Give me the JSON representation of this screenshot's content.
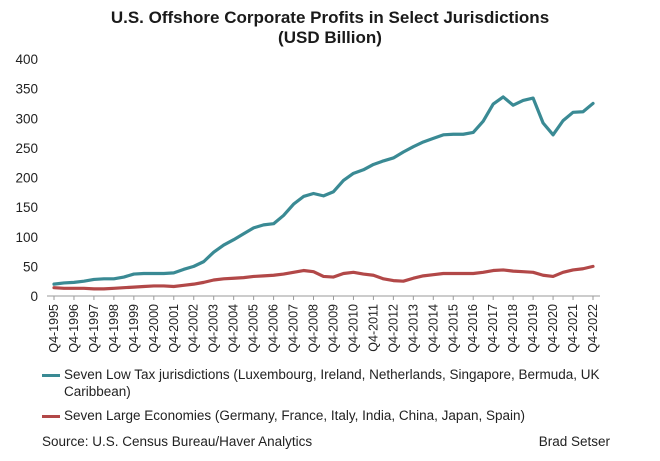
{
  "chart_data": {
    "type": "line",
    "title": "U.S. Offshore Corporate Profits in Select Jurisdictions",
    "subtitle": "(USD Billion)",
    "ylim": [
      0,
      400
    ],
    "yticks": [
      0,
      50,
      100,
      150,
      200,
      250,
      300,
      350,
      400
    ],
    "xtick_labels": [
      "Q4-1995",
      "Q4-1996",
      "Q4-1997",
      "Q4-1998",
      "Q4-1999",
      "Q4-2000",
      "Q4-2001",
      "Q4-2002",
      "Q4-2003",
      "Q4-2004",
      "Q4-2005",
      "Q4-2006",
      "Q4-2007",
      "Q4-2008",
      "Q4-2009",
      "Q4-2010",
      "Q4-2011",
      "Q4-2012",
      "Q4-2013",
      "Q4-2014",
      "Q4-2015",
      "Q4-2016",
      "Q4-2017",
      "Q4-2018",
      "Q4-2019",
      "Q4-2020",
      "Q4-2021",
      "Q4-2022"
    ],
    "x": [
      "Q4-1995",
      "Q2-1996",
      "Q4-1996",
      "Q2-1997",
      "Q4-1997",
      "Q2-1998",
      "Q4-1998",
      "Q2-1999",
      "Q4-1999",
      "Q2-2000",
      "Q4-2000",
      "Q2-2001",
      "Q4-2001",
      "Q2-2002",
      "Q4-2002",
      "Q2-2003",
      "Q4-2003",
      "Q2-2004",
      "Q4-2004",
      "Q2-2005",
      "Q4-2005",
      "Q2-2006",
      "Q4-2006",
      "Q2-2007",
      "Q4-2007",
      "Q2-2008",
      "Q4-2008",
      "Q2-2009",
      "Q4-2009",
      "Q2-2010",
      "Q4-2010",
      "Q2-2011",
      "Q4-2011",
      "Q2-2012",
      "Q4-2012",
      "Q2-2013",
      "Q4-2013",
      "Q2-2014",
      "Q4-2014",
      "Q2-2015",
      "Q4-2015",
      "Q2-2016",
      "Q4-2016",
      "Q2-2017",
      "Q4-2017",
      "Q2-2018",
      "Q4-2018",
      "Q2-2019",
      "Q4-2019",
      "Q2-2020",
      "Q4-2020",
      "Q2-2021",
      "Q4-2021",
      "Q2-2022",
      "Q4-2022"
    ],
    "grid": false,
    "legend_position": "bottom",
    "series": [
      {
        "name": "Seven Low Tax jurisdictions (Luxembourg, Ireland, Netherlands, Singapore, Bermuda, UK Caribbean)",
        "color": "#3a8a94",
        "values": [
          20,
          22,
          23,
          25,
          28,
          29,
          29,
          32,
          37,
          38,
          38,
          38,
          39,
          45,
          50,
          58,
          74,
          86,
          95,
          105,
          115,
          120,
          122,
          136,
          155,
          168,
          173,
          169,
          176,
          195,
          207,
          213,
          222,
          228,
          233,
          243,
          252,
          260,
          266,
          272,
          273,
          273,
          276,
          295,
          324,
          336,
          322,
          330,
          334,
          292,
          272,
          296,
          310,
          311,
          325
        ]
      },
      {
        "name": "Seven Large Economies (Germany, France, Italy, India, China, Japan, Spain)",
        "color": "#b24848",
        "values": [
          14,
          13,
          13,
          13,
          12,
          12,
          13,
          14,
          15,
          16,
          17,
          17,
          16,
          18,
          20,
          23,
          27,
          29,
          30,
          31,
          33,
          34,
          35,
          37,
          40,
          43,
          41,
          33,
          32,
          38,
          40,
          37,
          35,
          29,
          26,
          25,
          30,
          34,
          36,
          38,
          38,
          38,
          38,
          40,
          43,
          44,
          42,
          41,
          40,
          35,
          33,
          40,
          44,
          46,
          50
        ]
      }
    ],
    "source": "Source: U.S. Census Bureau/Haver Analytics",
    "author": "Brad Setser"
  }
}
